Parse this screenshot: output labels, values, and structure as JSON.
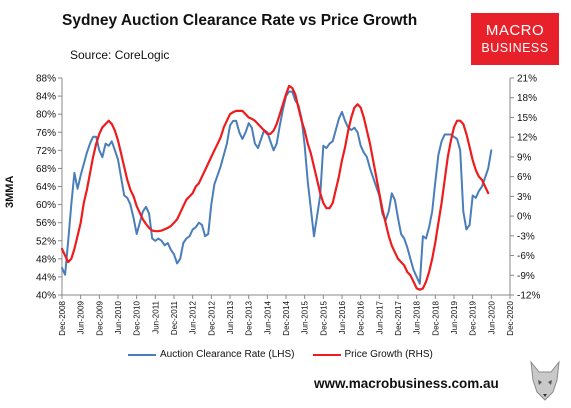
{
  "header": {
    "title": "Sydney Auction Clearance Rate vs Price Growth",
    "source": "Source: CoreLogic"
  },
  "logo": {
    "line1": "MACRO",
    "line2": "BUSINESS"
  },
  "footer": {
    "url": "www.macrobusiness.com.au"
  },
  "chart_data": {
    "type": "line",
    "title": "Sydney Auction Clearance Rate vs Price Growth",
    "ylabel": "3MMA",
    "left_axis": {
      "ylim": [
        40,
        88
      ],
      "step": 4,
      "format": "percent",
      "ticks": [
        "88%",
        "84%",
        "80%",
        "76%",
        "72%",
        "68%",
        "64%",
        "60%",
        "56%",
        "52%",
        "48%",
        "44%",
        "40%"
      ]
    },
    "right_axis": {
      "ylim": [
        -12,
        21
      ],
      "step": 3,
      "format": "percent",
      "ticks": [
        "21%",
        "18%",
        "15%",
        "12%",
        "9%",
        "6%",
        "3%",
        "0%",
        "-3%",
        "-6%",
        "-9%",
        "-12%"
      ]
    },
    "x_range": [
      "2008-12",
      "2020-12"
    ],
    "x_tick_labels": [
      "Dec-2008",
      "Jun-2009",
      "Dec-2009",
      "Jun-2010",
      "Dec-2010",
      "Jun-2011",
      "Dec-2011",
      "Jun-2012",
      "Dec-2012",
      "Jun-2013",
      "Dec-2013",
      "Jun-2014",
      "Dec-2014",
      "Jun-2015",
      "Dec-2015",
      "Jun-2016",
      "Dec-2016",
      "Jun-2017",
      "Dec-2017",
      "Jun-2018",
      "Dec-2018",
      "Jun-2019",
      "Dec-2019",
      "Jun-2020",
      "Dec-2020"
    ],
    "grid": false,
    "legend_position": "bottom",
    "series": [
      {
        "name": "Auction Clearance Rate (LHS)",
        "axis": "left",
        "color": "#4a7ebb",
        "points": [
          [
            "2008-12",
            46
          ],
          [
            "2009-01",
            44.5
          ],
          [
            "2009-02",
            52
          ],
          [
            "2009-03",
            60
          ],
          [
            "2009-04",
            67
          ],
          [
            "2009-05",
            63.5
          ],
          [
            "2009-06",
            66.5
          ],
          [
            "2009-07",
            69
          ],
          [
            "2009-08",
            71.5
          ],
          [
            "2009-09",
            73.5
          ],
          [
            "2009-10",
            75
          ],
          [
            "2009-11",
            75
          ],
          [
            "2009-12",
            72
          ],
          [
            "2010-01",
            70.5
          ],
          [
            "2010-02",
            73.5
          ],
          [
            "2010-03",
            73
          ],
          [
            "2010-04",
            74
          ],
          [
            "2010-05",
            72
          ],
          [
            "2010-06",
            70
          ],
          [
            "2010-07",
            66
          ],
          [
            "2010-08",
            62
          ],
          [
            "2010-09",
            61.5
          ],
          [
            "2010-10",
            60
          ],
          [
            "2010-11",
            57
          ],
          [
            "2010-12",
            53.5
          ],
          [
            "2011-01",
            56
          ],
          [
            "2011-02",
            58.5
          ],
          [
            "2011-03",
            59.5
          ],
          [
            "2011-04",
            58
          ],
          [
            "2011-05",
            52.5
          ],
          [
            "2011-06",
            52
          ],
          [
            "2011-07",
            52.5
          ],
          [
            "2011-08",
            52
          ],
          [
            "2011-09",
            51
          ],
          [
            "2011-10",
            51.5
          ],
          [
            "2011-11",
            50
          ],
          [
            "2011-12",
            49
          ],
          [
            "2012-01",
            47
          ],
          [
            "2012-02",
            48
          ],
          [
            "2012-03",
            51.5
          ],
          [
            "2012-04",
            52.5
          ],
          [
            "2012-05",
            53
          ],
          [
            "2012-06",
            54.5
          ],
          [
            "2012-07",
            55
          ],
          [
            "2012-08",
            56
          ],
          [
            "2012-09",
            55.5
          ],
          [
            "2012-10",
            53
          ],
          [
            "2012-11",
            53.5
          ],
          [
            "2012-12",
            60
          ],
          [
            "2013-01",
            64.5
          ],
          [
            "2013-02",
            66.5
          ],
          [
            "2013-03",
            68.5
          ],
          [
            "2013-04",
            71
          ],
          [
            "2013-05",
            73.5
          ],
          [
            "2013-06",
            77.5
          ],
          [
            "2013-07",
            78.5
          ],
          [
            "2013-08",
            78.5
          ],
          [
            "2013-09",
            76
          ],
          [
            "2013-10",
            74.5
          ],
          [
            "2013-11",
            76
          ],
          [
            "2013-12",
            78
          ],
          [
            "2014-01",
            77
          ],
          [
            "2014-02",
            73.5
          ],
          [
            "2014-03",
            72.5
          ],
          [
            "2014-04",
            74.5
          ],
          [
            "2014-05",
            76.5
          ],
          [
            "2014-06",
            76
          ],
          [
            "2014-07",
            74
          ],
          [
            "2014-08",
            72
          ],
          [
            "2014-09",
            73.5
          ],
          [
            "2014-10",
            77.5
          ],
          [
            "2014-11",
            81
          ],
          [
            "2014-12",
            84
          ],
          [
            "2015-01",
            85
          ],
          [
            "2015-02",
            85
          ],
          [
            "2015-03",
            83
          ],
          [
            "2015-04",
            82
          ],
          [
            "2015-05",
            79
          ],
          [
            "2015-06",
            73
          ],
          [
            "2015-07",
            65
          ],
          [
            "2015-08",
            59
          ],
          [
            "2015-09",
            53
          ],
          [
            "2015-10",
            57.5
          ],
          [
            "2015-11",
            62
          ],
          [
            "2015-12",
            73
          ],
          [
            "2016-01",
            72.5
          ],
          [
            "2016-02",
            73.5
          ],
          [
            "2016-03",
            74
          ],
          [
            "2016-04",
            76.5
          ],
          [
            "2016-05",
            79
          ],
          [
            "2016-06",
            80.5
          ],
          [
            "2016-07",
            78.5
          ],
          [
            "2016-08",
            77
          ],
          [
            "2016-09",
            76.5
          ],
          [
            "2016-10",
            77
          ],
          [
            "2016-11",
            76
          ],
          [
            "2016-12",
            73
          ],
          [
            "2017-01",
            71.5
          ],
          [
            "2017-02",
            70.5
          ],
          [
            "2017-03",
            68
          ],
          [
            "2017-04",
            66
          ],
          [
            "2017-05",
            64
          ],
          [
            "2017-06",
            62
          ],
          [
            "2017-07",
            58
          ],
          [
            "2017-08",
            56.5
          ],
          [
            "2017-09",
            58.5
          ],
          [
            "2017-10",
            62.5
          ],
          [
            "2017-11",
            61
          ],
          [
            "2017-12",
            57
          ],
          [
            "2018-01",
            53.5
          ],
          [
            "2018-02",
            52.5
          ],
          [
            "2018-03",
            50.5
          ],
          [
            "2018-04",
            48
          ],
          [
            "2018-05",
            45.5
          ],
          [
            "2018-06",
            44
          ],
          [
            "2018-07",
            42.5
          ],
          [
            "2018-08",
            53
          ],
          [
            "2018-09",
            52.5
          ],
          [
            "2018-10",
            55
          ],
          [
            "2018-11",
            58.5
          ],
          [
            "2018-12",
            65
          ],
          [
            "2019-01",
            71
          ],
          [
            "2019-02",
            74
          ],
          [
            "2019-03",
            75.5
          ],
          [
            "2019-04",
            75.5
          ],
          [
            "2019-05",
            75.5
          ],
          [
            "2019-06",
            75
          ],
          [
            "2019-07",
            74.5
          ],
          [
            "2019-08",
            72
          ],
          [
            "2019-09",
            58.5
          ],
          [
            "2019-10",
            54.5
          ],
          [
            "2019-11",
            55.5
          ],
          [
            "2019-12",
            62
          ],
          [
            "2020-01",
            61.5
          ],
          [
            "2020-02",
            63
          ],
          [
            "2020-03",
            64
          ],
          [
            "2020-04",
            66
          ],
          [
            "2020-05",
            68
          ],
          [
            "2020-06",
            72
          ]
        ]
      },
      {
        "name": "Price Growth (RHS)",
        "axis": "right",
        "color": "#ee1c1c",
        "points": [
          [
            "2008-12",
            -5
          ],
          [
            "2009-01",
            -6
          ],
          [
            "2009-02",
            -7
          ],
          [
            "2009-03",
            -6.5
          ],
          [
            "2009-04",
            -5
          ],
          [
            "2009-05",
            -3
          ],
          [
            "2009-06",
            -1
          ],
          [
            "2009-07",
            2
          ],
          [
            "2009-08",
            4
          ],
          [
            "2009-09",
            6.5
          ],
          [
            "2009-10",
            9
          ],
          [
            "2009-11",
            11
          ],
          [
            "2009-12",
            12.5
          ],
          [
            "2010-01",
            13.5
          ],
          [
            "2010-02",
            14
          ],
          [
            "2010-03",
            14.5
          ],
          [
            "2010-04",
            14
          ],
          [
            "2010-05",
            13
          ],
          [
            "2010-06",
            11.5
          ],
          [
            "2010-07",
            9.5
          ],
          [
            "2010-08",
            7.5
          ],
          [
            "2010-09",
            5.5
          ],
          [
            "2010-10",
            4
          ],
          [
            "2010-11",
            3
          ],
          [
            "2010-12",
            1.5
          ],
          [
            "2011-01",
            0.5
          ],
          [
            "2011-02",
            -0.5
          ],
          [
            "2011-03",
            -1.2
          ],
          [
            "2011-04",
            -1.8
          ],
          [
            "2011-05",
            -2.2
          ],
          [
            "2011-06",
            -2.3
          ],
          [
            "2011-07",
            -2.3
          ],
          [
            "2011-08",
            -2.2
          ],
          [
            "2011-09",
            -2
          ],
          [
            "2011-10",
            -1.8
          ],
          [
            "2011-11",
            -1.5
          ],
          [
            "2011-12",
            -1
          ],
          [
            "2012-01",
            -0.5
          ],
          [
            "2012-02",
            0.5
          ],
          [
            "2012-03",
            1.5
          ],
          [
            "2012-04",
            2.5
          ],
          [
            "2012-05",
            3
          ],
          [
            "2012-06",
            3.5
          ],
          [
            "2012-07",
            4.5
          ],
          [
            "2012-08",
            5
          ],
          [
            "2012-09",
            6
          ],
          [
            "2012-10",
            7
          ],
          [
            "2012-11",
            8
          ],
          [
            "2012-12",
            9
          ],
          [
            "2013-01",
            10
          ],
          [
            "2013-02",
            11
          ],
          [
            "2013-03",
            12
          ],
          [
            "2013-04",
            13.5
          ],
          [
            "2013-05",
            14.5
          ],
          [
            "2013-06",
            15.5
          ],
          [
            "2013-07",
            15.8
          ],
          [
            "2013-08",
            16
          ],
          [
            "2013-09",
            16
          ],
          [
            "2013-10",
            16
          ],
          [
            "2013-11",
            15.5
          ],
          [
            "2013-12",
            15
          ],
          [
            "2014-01",
            14.8
          ],
          [
            "2014-02",
            14.5
          ],
          [
            "2014-03",
            14
          ],
          [
            "2014-04",
            13.5
          ],
          [
            "2014-05",
            13
          ],
          [
            "2014-06",
            12.5
          ],
          [
            "2014-07",
            12.5
          ],
          [
            "2014-08",
            13
          ],
          [
            "2014-09",
            14
          ],
          [
            "2014-10",
            15.5
          ],
          [
            "2014-11",
            17
          ],
          [
            "2014-12",
            18.5
          ],
          [
            "2015-01",
            19.8
          ],
          [
            "2015-02",
            19.5
          ],
          [
            "2015-03",
            18.5
          ],
          [
            "2015-04",
            16.5
          ],
          [
            "2015-05",
            14.5
          ],
          [
            "2015-06",
            13
          ],
          [
            "2015-07",
            11
          ],
          [
            "2015-08",
            9.5
          ],
          [
            "2015-09",
            7.5
          ],
          [
            "2015-10",
            5.5
          ],
          [
            "2015-11",
            3.5
          ],
          [
            "2015-12",
            2
          ],
          [
            "2016-01",
            1.2
          ],
          [
            "2016-02",
            1.2
          ],
          [
            "2016-03",
            2
          ],
          [
            "2016-04",
            4
          ],
          [
            "2016-05",
            6
          ],
          [
            "2016-06",
            8.5
          ],
          [
            "2016-07",
            10.5
          ],
          [
            "2016-08",
            13
          ],
          [
            "2016-09",
            15
          ],
          [
            "2016-10",
            16.5
          ],
          [
            "2016-11",
            17
          ],
          [
            "2016-12",
            16.5
          ],
          [
            "2017-01",
            15
          ],
          [
            "2017-02",
            13
          ],
          [
            "2017-03",
            11
          ],
          [
            "2017-04",
            8.5
          ],
          [
            "2017-05",
            6
          ],
          [
            "2017-06",
            3.5
          ],
          [
            "2017-07",
            1
          ],
          [
            "2017-08",
            -1
          ],
          [
            "2017-09",
            -3
          ],
          [
            "2017-10",
            -4.5
          ],
          [
            "2017-11",
            -5.5
          ],
          [
            "2017-12",
            -6.5
          ],
          [
            "2018-01",
            -7
          ],
          [
            "2018-02",
            -7.5
          ],
          [
            "2018-03",
            -8.5
          ],
          [
            "2018-04",
            -9
          ],
          [
            "2018-05",
            -10
          ],
          [
            "2018-06",
            -11
          ],
          [
            "2018-07",
            -11.2
          ],
          [
            "2018-08",
            -11
          ],
          [
            "2018-09",
            -10
          ],
          [
            "2018-10",
            -8.5
          ],
          [
            "2018-11",
            -6.5
          ],
          [
            "2018-12",
            -4
          ],
          [
            "2019-01",
            -1
          ],
          [
            "2019-02",
            2
          ],
          [
            "2019-03",
            5.5
          ],
          [
            "2019-04",
            9
          ],
          [
            "2019-05",
            11.5
          ],
          [
            "2019-06",
            13.5
          ],
          [
            "2019-07",
            14.5
          ],
          [
            "2019-08",
            14.5
          ],
          [
            "2019-09",
            14
          ],
          [
            "2019-10",
            12.5
          ],
          [
            "2019-11",
            10.5
          ],
          [
            "2019-12",
            8.5
          ],
          [
            "2020-01",
            7
          ],
          [
            "2020-02",
            6
          ],
          [
            "2020-03",
            5.5
          ],
          [
            "2020-04",
            4.5
          ],
          [
            "2020-05",
            3.5
          ]
        ]
      }
    ]
  }
}
